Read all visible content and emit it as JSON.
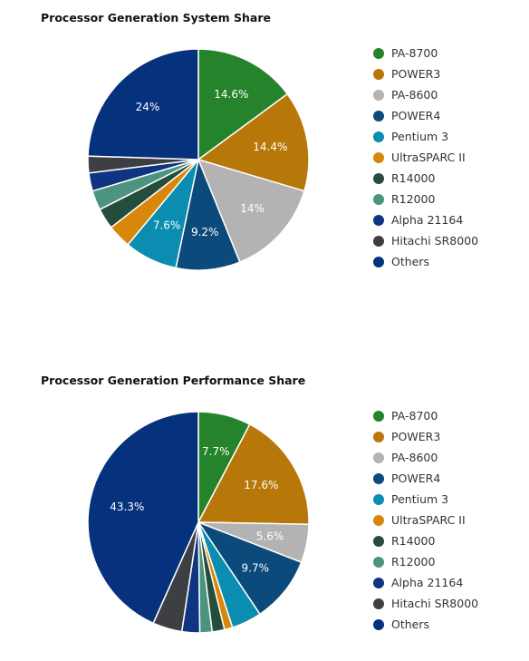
{
  "chart_data": [
    {
      "type": "pie",
      "title": "Processor Generation System Share",
      "categories": [
        "PA-8700",
        "POWER3",
        "PA-8600",
        "POWER4",
        "Pentium 3",
        "UltraSPARC II",
        "R14000",
        "R12000",
        "Alpha 21164",
        "Hitachi SR8000",
        "Others"
      ],
      "values": [
        14.6,
        14.4,
        14,
        9.2,
        7.6,
        3.4,
        3,
        2.8,
        2.6,
        2.4,
        24
      ],
      "data_labels": [
        "14.6%",
        "14.4%",
        "14%",
        "9.2%",
        "7.6%",
        "",
        "",
        "",
        "",
        "",
        "24%"
      ],
      "legend": "right"
    },
    {
      "type": "pie",
      "title": "Processor Generation Performance Share",
      "categories": [
        "PA-8700",
        "POWER3",
        "PA-8600",
        "POWER4",
        "Pentium 3",
        "UltraSPARC II",
        "R14000",
        "R12000",
        "Alpha 21164",
        "Hitachi SR8000",
        "Others"
      ],
      "values": [
        7.7,
        17.6,
        5.6,
        9.7,
        4.4,
        1.2,
        1.8,
        1.8,
        2.6,
        4.3,
        43.3
      ],
      "data_labels": [
        "7.7%",
        "17.6%",
        "5.6%",
        "9.7%",
        "",
        "",
        "",
        "",
        "",
        "",
        "43.3%"
      ],
      "legend": "right"
    }
  ],
  "colors": [
    "#25832b",
    "#b87709",
    "#b3b3b3",
    "#0b4a7a",
    "#0a8db0",
    "#d9870b",
    "#254d3c",
    "#4a9480",
    "#0e3482",
    "#3e3f42",
    "#06317d"
  ]
}
